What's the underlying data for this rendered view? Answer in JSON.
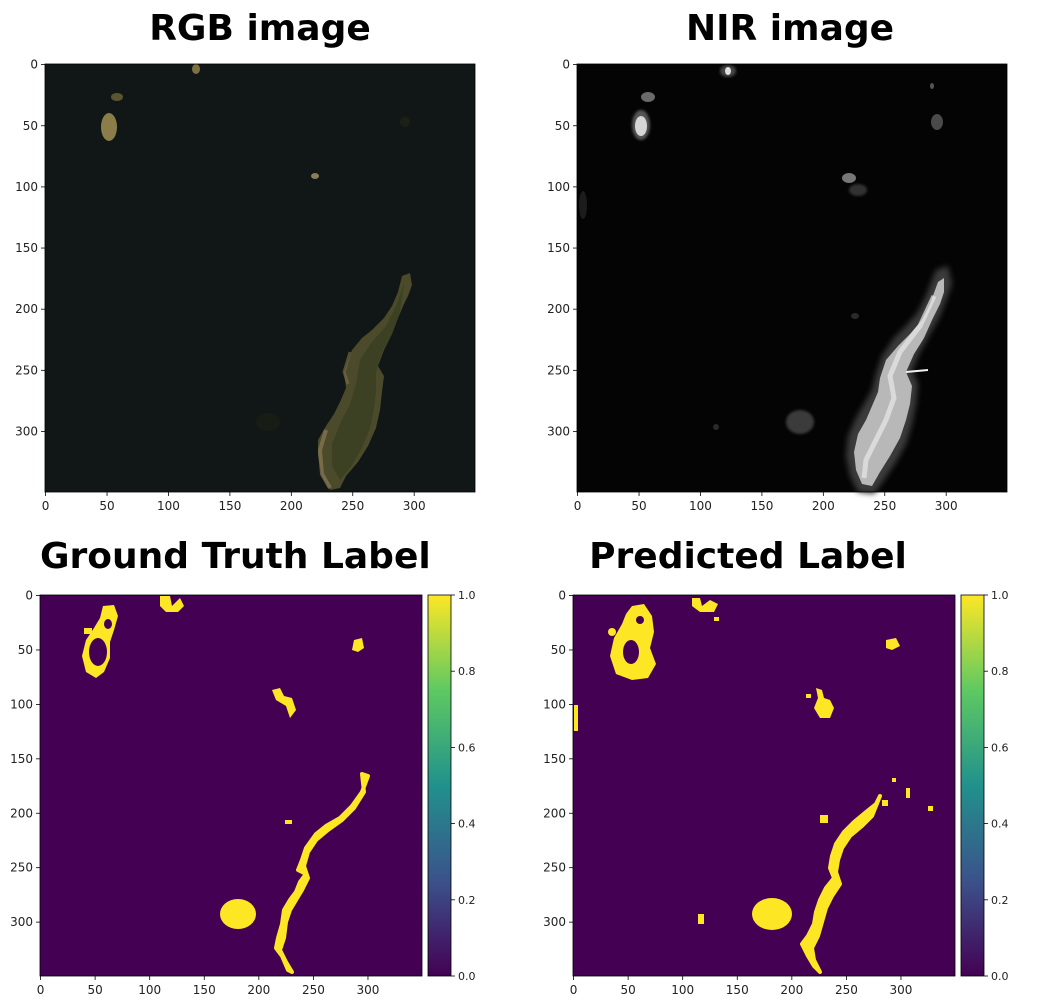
{
  "panels": {
    "rgb": {
      "title": "RGB image"
    },
    "nir": {
      "title": "NIR image"
    },
    "gt": {
      "title": "Ground Truth Label"
    },
    "pred": {
      "title": "Predicted Label"
    }
  },
  "axes": {
    "x_ticks": [
      "0",
      "50",
      "100",
      "150",
      "200",
      "250",
      "300"
    ],
    "y_ticks": [
      "0",
      "50",
      "100",
      "150",
      "200",
      "250",
      "300"
    ],
    "image_size": 350
  },
  "colorbar": {
    "ticks": [
      "1.0",
      "0.8",
      "0.6",
      "0.4",
      "0.2",
      "0.0"
    ],
    "colormap": [
      "#440154",
      "#3b528b",
      "#21918c",
      "#5ec962",
      "#fde725"
    ]
  },
  "colors": {
    "label_background": "#440154",
    "label_foreground": "#fde725",
    "rgb_background": "#121810",
    "nir_background": "#050505"
  }
}
